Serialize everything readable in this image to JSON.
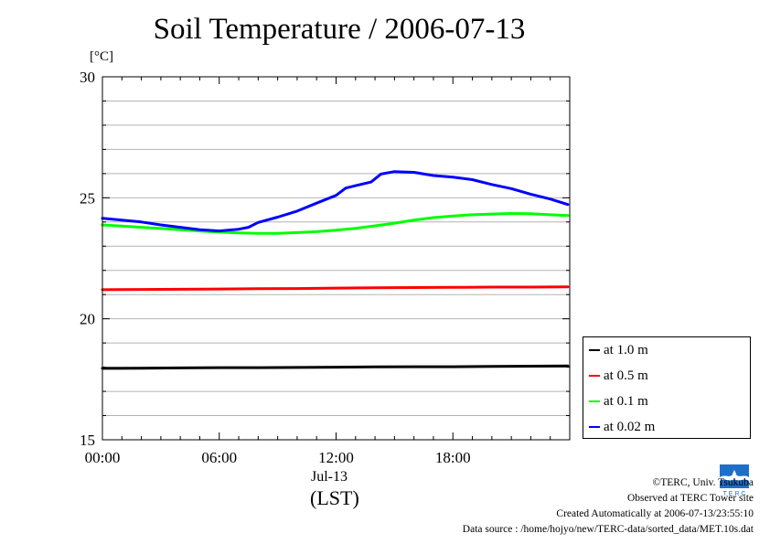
{
  "chart_data": {
    "type": "line",
    "title": "Soil Temperature / 2006-07-13",
    "ylabel": "[°C]",
    "xlabel_date": "Jul-13",
    "xlabel_unit": "(LST)",
    "ylim": [
      15,
      30
    ],
    "xlim": [
      0,
      24
    ],
    "yticks": [
      15,
      20,
      25,
      30
    ],
    "ytick_labels": [
      "15",
      "20",
      "25",
      "30"
    ],
    "xticks": [
      0,
      6,
      12,
      18
    ],
    "xtick_labels": [
      "00:00",
      "06:00",
      "12:00",
      "18:00"
    ],
    "grid": true,
    "legend_position": "bottom-right, outside plot",
    "series": [
      {
        "name": "at 1.0 m",
        "color": "#000000",
        "x": [
          0,
          2,
          4,
          6,
          8,
          10,
          12,
          14,
          16,
          18,
          20,
          22,
          23.9
        ],
        "y": [
          17.95,
          17.96,
          17.97,
          17.98,
          17.98,
          17.99,
          18.0,
          18.01,
          18.02,
          18.02,
          18.03,
          18.04,
          18.05
        ]
      },
      {
        "name": "at 0.5 m",
        "color": "#ff0000",
        "x": [
          0,
          2,
          4,
          6,
          8,
          10,
          12,
          14,
          16,
          18,
          20,
          22,
          23.9
        ],
        "y": [
          21.2,
          21.21,
          21.22,
          21.23,
          21.24,
          21.25,
          21.27,
          21.28,
          21.29,
          21.3,
          21.31,
          21.31,
          21.32
        ]
      },
      {
        "name": "at 0.1 m",
        "color": "#00ff00",
        "x": [
          0,
          1,
          2,
          3,
          4,
          5,
          6,
          7,
          8,
          9,
          10,
          11,
          12,
          13,
          14,
          15,
          16,
          17,
          18,
          19,
          20,
          21,
          22,
          23,
          23.9
        ],
        "y": [
          23.88,
          23.83,
          23.78,
          23.73,
          23.68,
          23.63,
          23.58,
          23.55,
          23.53,
          23.53,
          23.56,
          23.6,
          23.66,
          23.74,
          23.84,
          23.95,
          24.08,
          24.18,
          24.25,
          24.3,
          24.33,
          24.35,
          24.34,
          24.3,
          24.27
        ]
      },
      {
        "name": "at 0.02 m",
        "color": "#0000ff",
        "x": [
          0,
          1,
          2,
          3,
          4,
          5,
          6,
          7,
          7.5,
          8,
          9,
          10,
          11,
          12,
          12.5,
          13,
          13.8,
          14.3,
          15,
          16,
          17,
          18,
          19,
          20,
          21,
          22,
          23,
          23.9
        ],
        "y": [
          24.15,
          24.08,
          24.0,
          23.88,
          23.78,
          23.68,
          23.63,
          23.7,
          23.78,
          23.98,
          24.2,
          24.45,
          24.78,
          25.1,
          25.4,
          25.5,
          25.65,
          25.98,
          26.08,
          26.05,
          25.92,
          25.85,
          25.75,
          25.55,
          25.38,
          25.15,
          24.95,
          24.72
        ]
      }
    ]
  },
  "credits": {
    "copyright": "©TERC, Univ. Tsukuba",
    "site": "Observed at TERC Tower site",
    "created": "Created Automatically at 2006-07-13/23:55:10",
    "source": "Data source : /home/hojyo/new/TERC-data/sorted_data/MET.10s.dat"
  },
  "logo": {
    "name": "terc-logo-icon",
    "text": "T E R C",
    "color": "#1e6fc8"
  }
}
